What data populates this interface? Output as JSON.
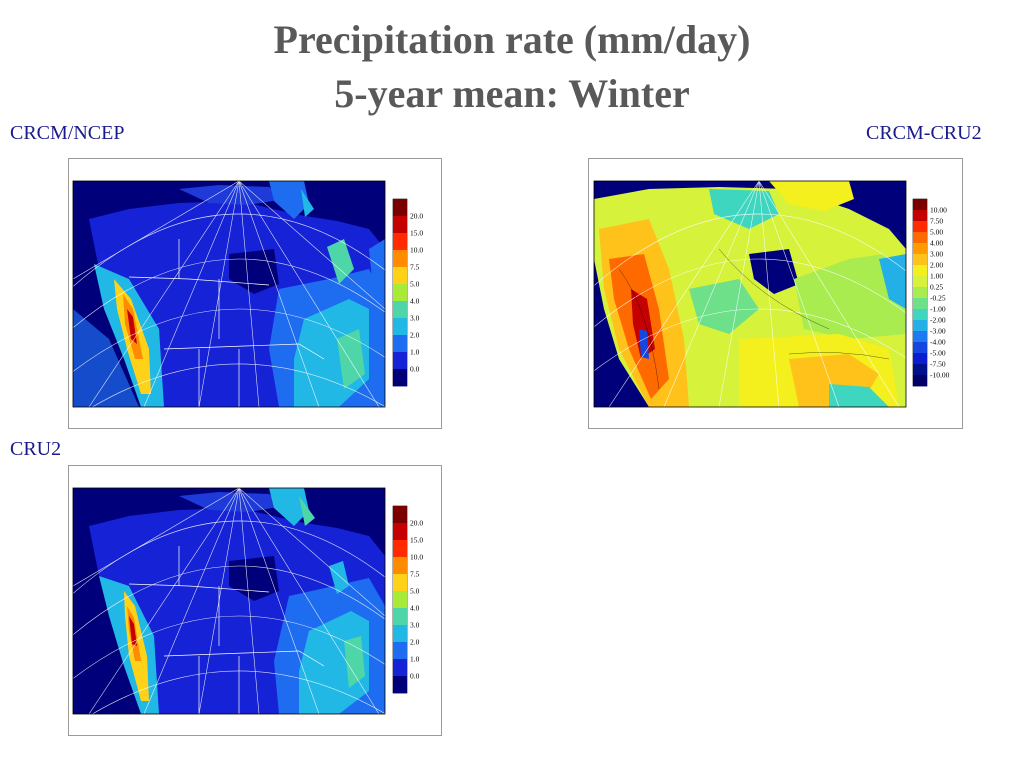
{
  "slide": {
    "title_line1": "Precipitation rate (mm/day)",
    "title_line2": "5-year mean: Winter"
  },
  "panels": [
    {
      "id": "ncep",
      "label": "CRCM/NCEP",
      "map": "precip-absolute",
      "colorbar": {
        "labels": [
          "20.0",
          "15.0",
          "10.0",
          "7.5",
          "5.0",
          "4.0",
          "3.0",
          "2.0",
          "1.0",
          "0.0"
        ],
        "colors": [
          "#7a0000",
          "#c40000",
          "#ff2a00",
          "#ff8c00",
          "#ffd21a",
          "#a8ea38",
          "#4fd6a8",
          "#22b8e6",
          "#1e6cf0",
          "#1622d6",
          "#00007a"
        ]
      }
    },
    {
      "id": "diff",
      "label": "CRCM-CRU2",
      "map": "precip-difference",
      "colorbar": {
        "labels": [
          "10.00",
          "7.50",
          "5.00",
          "4.00",
          "3.00",
          "2.00",
          "1.00",
          "0.25",
          "-0.25",
          "-1.00",
          "-2.00",
          "-3.00",
          "-4.00",
          "-5.00",
          "-7.50",
          "-10.00"
        ],
        "colors": [
          "#7a0000",
          "#c40000",
          "#ff2a00",
          "#ff6a00",
          "#ff9a00",
          "#ffc21a",
          "#f4f01e",
          "#d6f23a",
          "#a8ec50",
          "#6ee08a",
          "#3fd6bf",
          "#22b0e6",
          "#1e7af0",
          "#1446e0",
          "#0a1ed0",
          "#00108a",
          "#00006a"
        ]
      }
    },
    {
      "id": "cru",
      "label": "CRU2",
      "map": "precip-absolute",
      "colorbar": {
        "labels": [
          "20.0",
          "15.0",
          "10.0",
          "7.5",
          "5.0",
          "4.0",
          "3.0",
          "2.0",
          "1.0",
          "0.0"
        ],
        "colors": [
          "#7a0000",
          "#c40000",
          "#ff2a00",
          "#ff8c00",
          "#ffd21a",
          "#a8ea38",
          "#4fd6a8",
          "#22b8e6",
          "#1e6cf0",
          "#1622d6",
          "#00007a"
        ]
      }
    }
  ]
}
